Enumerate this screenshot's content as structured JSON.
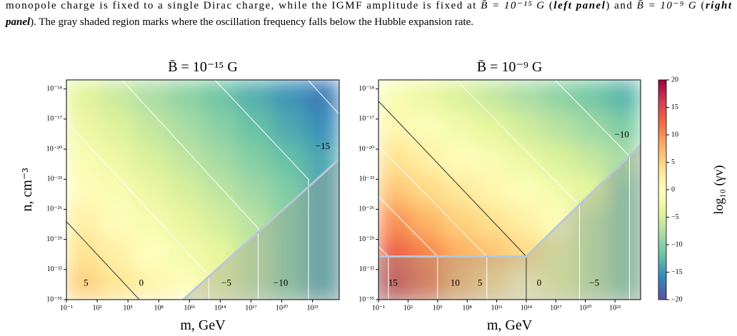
{
  "caption": {
    "line1": [
      "monopole charge is fixed to a single Dirac charge, while the IGMF amplitude is fixed at ",
      "B̄ = 10⁻¹⁵ G",
      " (",
      "left panel",
      ") and ",
      "B̄ = 10⁻⁹ G",
      " (",
      "right"
    ],
    "line2": [
      "panel",
      "). The gray shaded region marks where the oscillation frequency falls below the Hubble expansion rate."
    ]
  },
  "chart_data": [
    {
      "type": "heatmap",
      "title": "B̄ = 10⁻¹⁵ G",
      "xlabel": "m, GeV",
      "ylabel": "n, cm⁻³",
      "xscale": "log",
      "yscale": "log",
      "xlim": [
        0.1,
        4e+25
      ],
      "ylim": [
        1e-35,
        8e-14
      ],
      "xticks": [
        {
          "value": 0.1,
          "label": "10⁻¹"
        },
        {
          "value": 100.0,
          "label": "10²"
        },
        {
          "value": 100000.0,
          "label": "10⁵"
        },
        {
          "value": 100000000.0,
          "label": "10⁸"
        },
        {
          "value": 100000000000.0,
          "label": "10¹¹"
        },
        {
          "value": 100000000000000.0,
          "label": "10¹⁴"
        },
        {
          "value": 1e+17,
          "label": "10¹⁷"
        },
        {
          "value": 1e+20,
          "label": "10²⁰"
        },
        {
          "value": 1e+23,
          "label": "10²³"
        }
      ],
      "yticks": [
        {
          "value": 1e-35,
          "label": "10⁻³⁵"
        },
        {
          "value": 1e-32,
          "label": "10⁻³²"
        },
        {
          "value": 1e-29,
          "label": "10⁻²⁹"
        },
        {
          "value": 1e-26,
          "label": "10⁻²⁶"
        },
        {
          "value": 1e-23,
          "label": "10⁻²³"
        },
        {
          "value": 1e-20,
          "label": "10⁻²⁰"
        },
        {
          "value": 1e-17,
          "label": "10⁻¹⁷"
        },
        {
          "value": 1e-14,
          "label": "10⁻¹⁴"
        }
      ],
      "x_edges": [
        0.1,
        200.0,
        400000.0,
        1000000000.0,
        2000000000000.0,
        4000000000000000.0,
        1e+19,
        2e+22,
        4e+25
      ],
      "y_edges": [
        1e-35,
        1.3e-32,
        2e-29,
        2.5e-26,
        3e-23,
        4e-20,
        6e-17,
        8e-14
      ],
      "z": [
        [
          5.2,
          3.4,
          1.5,
          -0.3,
          -3.1,
          -6.6,
          -10.0,
          -13.5
        ],
        [
          3.6,
          1.8,
          -0.1,
          -1.9,
          -3.7,
          -6.6,
          -10.0,
          -13.5
        ],
        [
          2.0,
          0.2,
          -1.7,
          -3.5,
          -5.3,
          -7.2,
          -10.0,
          -13.5
        ],
        [
          0.5,
          -1.3,
          -3.2,
          -5.0,
          -6.8,
          -8.7,
          -10.5,
          -13.5
        ],
        [
          -1.1,
          -2.9,
          -4.8,
          -6.6,
          -8.4,
          -10.3,
          -12.1,
          -13.9
        ],
        [
          -2.7,
          -4.5,
          -6.4,
          -8.2,
          -10.0,
          -11.9,
          -13.7,
          -15.5
        ],
        [
          -4.2,
          -6.0,
          -7.9,
          -9.7,
          -11.5,
          -13.4,
          -15.2,
          -17.0
        ]
      ],
      "boundary": {
        "x": [
          25000000000.0,
          4e+25
        ],
        "y": [
          1e-35,
          1e-21
        ]
      },
      "contours": [
        {
          "level": 5,
          "label_x": 8,
          "label_y": 4e-34
        },
        {
          "level": 0,
          "color": "#333333",
          "x": [
            0.1,
            1300000.0
          ],
          "y": [
            6e-28,
            1e-35
          ],
          "label_x": 2000000.0,
          "label_y": 4e-34
        },
        {
          "level": {
            "value": -5,
            "label": "−5"
          },
          "color": "#ffffff",
          "x": [
            0.1,
            8000000000000.0,
            8000000000000.0
          ],
          "y": [
            6e-18,
            2.5e-33,
            1e-35
          ],
          "label_x": 400000000000000.0,
          "label_y": 4e-34
        },
        {
          "level": {
            "value": -10,
            "label": "−10"
          },
          "color": "#ffffff",
          "x": [
            25000.0,
            5e+17,
            5e+17
          ],
          "y": [
            8e-14,
            1.3e-28,
            1e-35
          ],
          "label_x": 8e+19,
          "label_y": 4e-34
        },
        {
          "level": {
            "value": -15,
            "label": "−15"
          },
          "color": "#ffffff",
          "x": [
            30000000000000.0,
            4e+22,
            4e+22
          ],
          "y": [
            8e-14,
            1e-23,
            1e-35
          ],
          "label_x": 1e+24,
          "label_y": 1.6e-20
        },
        {
          "level": {
            "value": -20,
            "label": "−20"
          },
          "color": "#ffffff",
          "x": [
            3.5e+22,
            4e+25
          ],
          "y": [
            8e-14,
            3e-17
          ]
        }
      ]
    },
    {
      "type": "heatmap",
      "title": "B̄ = 10⁻⁹ G",
      "xlabel": "m, GeV",
      "xscale": "log",
      "yscale": "log",
      "xlim": [
        0.1,
        4e+25
      ],
      "ylim": [
        1e-35,
        8e-14
      ],
      "xticks": [
        {
          "value": 0.1,
          "label": "10⁻¹"
        },
        {
          "value": 100.0,
          "label": "10²"
        },
        {
          "value": 100000.0,
          "label": "10⁵"
        },
        {
          "value": 100000000.0,
          "label": "10⁸"
        },
        {
          "value": 100000000000.0,
          "label": "10¹¹"
        },
        {
          "value": 100000000000000.0,
          "label": "10¹⁴"
        },
        {
          "value": 1e+17,
          "label": "10¹⁷"
        },
        {
          "value": 1e+20,
          "label": "10²⁰"
        },
        {
          "value": 1e+23,
          "label": "10²³"
        }
      ],
      "yticks": [
        {
          "value": 1e-35,
          "label": "10⁻³⁵"
        },
        {
          "value": 1e-32,
          "label": "10⁻³²"
        },
        {
          "value": 1e-29,
          "label": "10⁻²⁹"
        },
        {
          "value": 1e-26,
          "label": "10⁻²⁶"
        },
        {
          "value": 1e-23,
          "label": "10⁻²³"
        },
        {
          "value": 1e-20,
          "label": "10⁻²⁰"
        },
        {
          "value": 1e-17,
          "label": "10⁻¹⁷"
        },
        {
          "value": 1e-14,
          "label": "10⁻¹⁴"
        }
      ],
      "x_edges": [
        0.1,
        200.0,
        400000.0,
        1000000000.0,
        2000000000000.0,
        4000000000000000.0,
        1e+19,
        2e+22,
        4e+25
      ],
      "y_edges": [
        1e-35,
        1.3e-32,
        2e-29,
        2.5e-26,
        3e-23,
        4e-20,
        6e-17,
        8e-14
      ],
      "z": [
        [
          15.5,
          11.5,
          7.0,
          3.6,
          0.1,
          -3.3,
          -6.7,
          -10.2
        ],
        [
          13.0,
          10.5,
          7.8,
          6.2,
          4.5,
          -3.3,
          -6.7,
          -10.2
        ],
        [
          10.0,
          7.5,
          5.3,
          3.7,
          2.0,
          0.3,
          -6.7,
          -10.2
        ],
        [
          6.2,
          4.5,
          2.8,
          1.2,
          -0.5,
          -2.2,
          -3.8,
          -10.2
        ],
        [
          3.7,
          2.0,
          0.3,
          -1.3,
          -3.0,
          -4.7,
          -6.3,
          -8.0
        ],
        [
          1.2,
          -0.5,
          -2.2,
          -3.8,
          -5.5,
          -7.2,
          -8.8,
          -10.5
        ],
        [
          -1.3,
          -3.0,
          -4.7,
          -6.3,
          -8.0,
          -9.7,
          -11.3,
          -13.0
        ]
      ],
      "boundary": {
        "x": [
          0.1,
          100000000000000.0,
          4e+25
        ],
        "y": [
          2e-31,
          2e-31,
          2.5e-20
        ]
      },
      "contours": [
        {
          "level": 15,
          "color": "#ffffff",
          "x": [
            0.1,
            1.0,
            1.0
          ],
          "y": [
            2e-30,
            2e-31,
            1e-35
          ],
          "label_x": 3.0,
          "label_y": 4e-34
        },
        {
          "level": 10,
          "color": "#ffffff",
          "x": [
            0.1,
            100000.0,
            100000.0
          ],
          "y": [
            2e-25,
            2e-31,
            1e-35
          ],
          "label_x": 6000000.0,
          "label_y": 4e-34
        },
        {
          "level": 5,
          "color": "#ffffff",
          "x": [
            0.1,
            10000000000.0,
            10000000000.0
          ],
          "y": [
            2e-20,
            2e-31,
            1e-35
          ],
          "label_x": 2000000000.0,
          "label_y": 4e-34
        },
        {
          "level": 0,
          "color": "#333333",
          "x": [
            0.1,
            100000000000000.0,
            100000000000000.0
          ],
          "y": [
            6e-16,
            2e-31,
            1e-35
          ],
          "label_x": 2000000000000000.0,
          "label_y": 4e-34
        },
        {
          "level": {
            "value": -5,
            "label": "−5"
          },
          "color": "#ffffff",
          "x": [
            8000000.0,
            2.5e+19,
            2.5e+19
          ],
          "y": [
            8e-14,
            2.5e-26,
            1e-35
          ],
          "label_x": 8e+20,
          "label_y": 4e-34
        },
        {
          "level": {
            "value": -10,
            "label": "−10"
          },
          "color": "#ffffff",
          "x": [
            8e+16,
            3e+24,
            3e+24
          ],
          "y": [
            8e-14,
            2e-21,
            1e-35
          ],
          "label_x": 5e+23,
          "label_y": 2.5e-19
        }
      ]
    }
  ],
  "colorbar": {
    "label": "log₁₀ (γv)",
    "clim": [
      -20,
      20
    ],
    "colors": [
      "#5e4fa2",
      "#3288bd",
      "#66c2a5",
      "#abdda4",
      "#e6f598",
      "#ffffbf",
      "#fee08b",
      "#fdae61",
      "#f46d43",
      "#d53e4f",
      "#9e0142"
    ],
    "ticks": [
      20,
      15,
      10,
      5,
      0,
      {
        "value": -5,
        "label": "−5"
      },
      {
        "value": -10,
        "label": "−10"
      },
      {
        "value": -15,
        "label": "−15"
      },
      {
        "value": -20,
        "label": "−20"
      }
    ]
  }
}
